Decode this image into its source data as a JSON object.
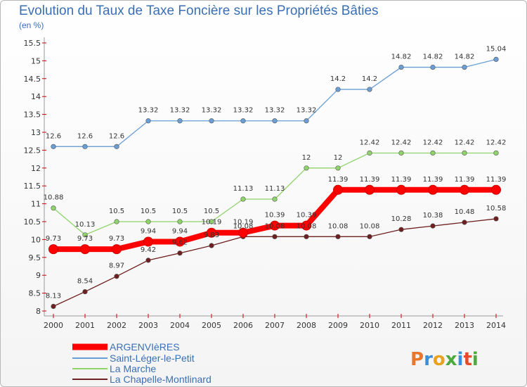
{
  "header": {
    "title": "Evolution du Taux de Taxe Foncière sur les Propriétés Bâties",
    "unit": "(en %)"
  },
  "brand": {
    "logo": "Proxiti",
    "colors": [
      "#e8762b",
      "#3a8fd8",
      "#e8a21f",
      "#4caa3c",
      "#3a8fd8",
      "#e84b2b",
      "#4caa3c"
    ]
  },
  "chart_data": {
    "type": "line",
    "title": "Evolution du Taux de Taxe Foncière sur les Propriétés Bâties",
    "ylabel": "(en %)",
    "xlabel": "",
    "categories": [
      "2000",
      "2001",
      "2002",
      "2003",
      "2004",
      "2005",
      "2006",
      "2007",
      "2008",
      "2009",
      "2010",
      "2011",
      "2012",
      "2013",
      "2014"
    ],
    "ylim": [
      8,
      15.5
    ],
    "yticks": [
      "8",
      "8.5",
      "9",
      "9.5",
      "10",
      "10.5",
      "11",
      "11.5",
      "12",
      "12.5",
      "13",
      "13.5",
      "14",
      "14.5",
      "15",
      "15.5"
    ],
    "grid": false,
    "legend_position": "bottom-left",
    "series": [
      {
        "name": "Saint-Léger-le-Petit",
        "color": "#6a9ed4",
        "values": [
          12.6,
          12.6,
          12.6,
          13.32,
          13.32,
          13.32,
          13.32,
          13.32,
          13.32,
          14.2,
          14.2,
          14.82,
          14.82,
          14.82,
          15.04
        ],
        "labels": [
          "12.6",
          "12.6",
          "12.6",
          "13.32",
          "13.32",
          "13.32",
          "13.32",
          "13.32",
          "13.32",
          "14.2",
          "14.2",
          "14.82",
          "14.82",
          "14.82",
          "15.04"
        ]
      },
      {
        "name": "La Marche",
        "color": "#8fd36b",
        "values": [
          10.88,
          10.13,
          10.5,
          10.5,
          10.5,
          10.5,
          11.13,
          11.13,
          12,
          12,
          12.42,
          12.42,
          12.42,
          12.42,
          12.42
        ],
        "labels": [
          "10.88",
          "10.13",
          "10.5",
          "10.5",
          "10.5",
          "10.5",
          "11.13",
          "11.13",
          "12",
          "12",
          "12.42",
          "12.42",
          "12.42",
          "12.42",
          "12.42"
        ]
      },
      {
        "name": "La Chapelle-Montlinard",
        "color": "#6e1f1f",
        "values": [
          8.13,
          8.54,
          8.97,
          9.42,
          9.62,
          9.83,
          10.08,
          10.08,
          10.08,
          10.08,
          10.08,
          10.28,
          10.38,
          10.48,
          10.58
        ],
        "labels": [
          "8.13",
          "8.54",
          "8.97",
          "9.42",
          "9.62",
          "9.83",
          "10.08",
          "10.08",
          "10.08",
          "10.08",
          "10.08",
          "10.28",
          "10.38",
          "10.48",
          "10.58"
        ]
      },
      {
        "name": "ARGENVIèRES",
        "color": "#ff0000",
        "values": [
          9.73,
          9.73,
          9.73,
          9.94,
          9.94,
          10.19,
          10.19,
          10.39,
          10.39,
          11.39,
          11.39,
          11.39,
          11.39,
          11.39,
          11.39
        ],
        "labels": [
          "9.73",
          "9.73",
          "9.73",
          "9.94",
          "9.94",
          "10.19",
          "10.19",
          "10.39",
          "10.39",
          "11.39",
          "11.39",
          "11.39",
          "11.39",
          "11.39",
          "11.39"
        ]
      }
    ],
    "legend": [
      "ARGENVIèRES",
      "Saint-Léger-le-Petit",
      "La Marche",
      "La Chapelle-Montlinard"
    ]
  }
}
